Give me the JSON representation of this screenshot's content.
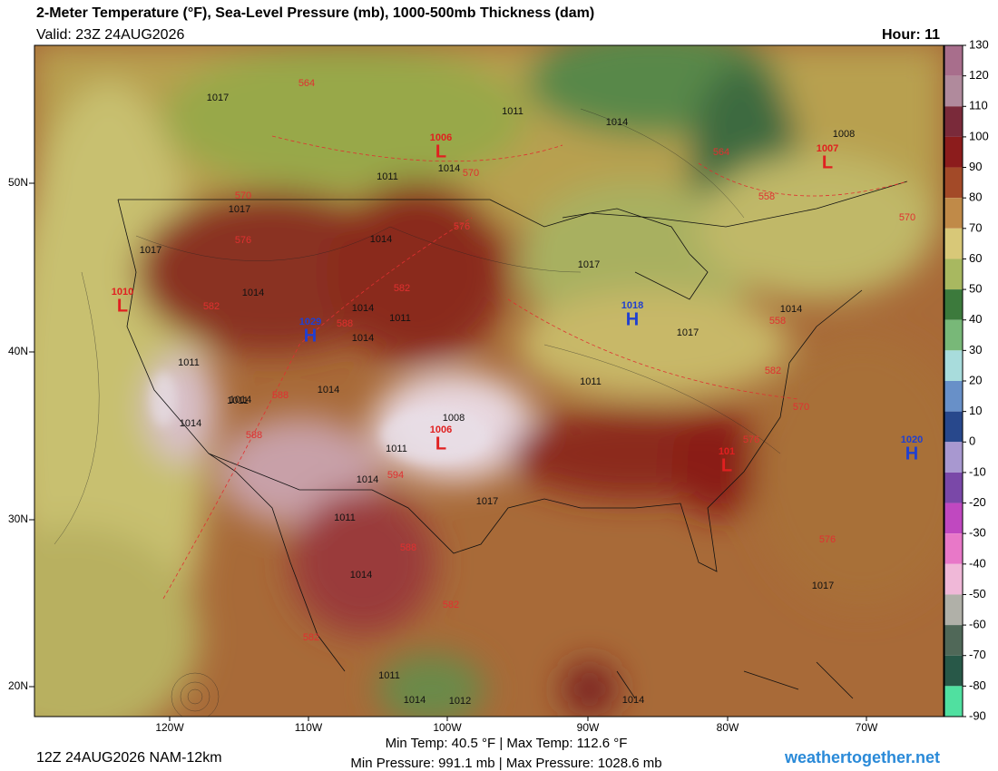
{
  "header": {
    "title": "2-Meter Temperature (°F), Sea-Level Pressure (mb), 1000-500mb Thickness (dam)",
    "valid": "Valid: 23Z 24AUG2026",
    "hour": "Hour: 11"
  },
  "map": {
    "lat_labels": [
      "50N",
      "40N",
      "30N",
      "20N"
    ],
    "lon_labels": [
      "120W",
      "110W",
      "100W",
      "90W",
      "80W",
      "70W"
    ],
    "centers": [
      {
        "letter": "L",
        "value": "1010",
        "color": "#e02020"
      },
      {
        "letter": "H",
        "value": "1029",
        "color": "#2040d0"
      },
      {
        "letter": "L",
        "value": "1006",
        "color": "#e02020"
      },
      {
        "letter": "L",
        "value": "1006",
        "color": "#e02020"
      },
      {
        "letter": "H",
        "value": "1018",
        "color": "#2040d0"
      },
      {
        "letter": "L",
        "value": "101",
        "color": "#e02020"
      },
      {
        "letter": "L",
        "value": "1007",
        "color": "#e02020"
      },
      {
        "letter": "H",
        "value": "1020",
        "color": "#2040d0"
      }
    ],
    "isobar_labels": [
      "1017",
      "1011",
      "1014",
      "1017",
      "1014",
      "1011",
      "1014",
      "1017",
      "1008",
      "1014",
      "1011",
      "1014",
      "1017",
      "1014",
      "1017",
      "1014",
      "1011",
      "1011",
      "1014",
      "1014",
      "1011",
      "1008",
      "1011",
      "1014",
      "1017",
      "1014",
      "1011",
      "1014",
      "1017",
      "1011",
      "1014",
      "1012",
      "1014"
    ],
    "thickness_labels": [
      "564",
      "570",
      "576",
      "576",
      "570",
      "582",
      "588",
      "582",
      "588",
      "594",
      "588",
      "582",
      "576",
      "570",
      "582",
      "558",
      "564",
      "558",
      "576",
      "588",
      "570",
      "582"
    ]
  },
  "colorbar": {
    "ticks": [
      130,
      120,
      110,
      100,
      90,
      80,
      70,
      60,
      50,
      40,
      30,
      20,
      10,
      0,
      -10,
      -20,
      -30,
      -40,
      -50,
      -60,
      -70,
      -80,
      -90
    ],
    "colors": [
      "#a86e8c",
      "#b08a9c",
      "#7a2a3a",
      "#8c1c1c",
      "#a34a28",
      "#c08a48",
      "#d8c878",
      "#a8b860",
      "#3c7a3c",
      "#78b878",
      "#a8dcdc",
      "#6890c8",
      "#28488c",
      "#a898d0",
      "#7a48a8",
      "#c048c0",
      "#e878c8",
      "#f0b8d8",
      "#b0b0a8",
      "#506858",
      "#285848",
      "#50e0a0"
    ]
  },
  "footer": {
    "run": "12Z 24AUG2026 NAM-12km",
    "temp": "Min Temp:  40.5 °F | Max Temp: 112.6 °F",
    "pressure": "Min Pressure: 991.1 mb | Max Pressure: 1028.6 mb",
    "site": "weathertogether.net"
  }
}
